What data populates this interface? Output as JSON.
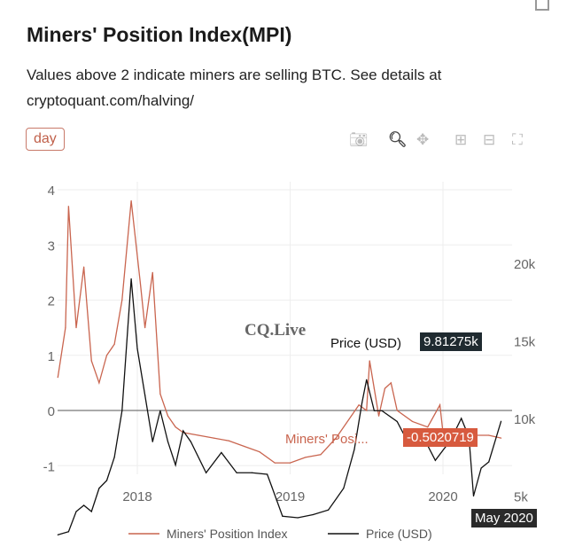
{
  "title": "Miners' Position Index(MPI)",
  "subtitle": "Values above 2 indicate miners are selling BTC. See details at cryptoquant.com/halving/",
  "range_button": "day",
  "toolbar": [
    "camera-icon",
    "zoom-icon",
    "pan-icon",
    "zoom-in-icon",
    "zoom-out-icon",
    "autoscale-icon"
  ],
  "watermark": "CQ.Live",
  "tooltips": {
    "price_label": "Price (USD)",
    "price_value": "9.81275k",
    "mpi_label": "Miners' Posi...",
    "mpi_value": "-0.5020719",
    "date": "May 2020"
  },
  "chart_data": {
    "type": "line",
    "title": "Miners' Position Index(MPI)",
    "y_left": {
      "ticks": [
        "4",
        "3",
        "2",
        "1",
        "0",
        "-1"
      ],
      "range": [
        -1,
        4
      ]
    },
    "y_right": {
      "ticks": [
        "20k",
        "15k",
        "10k",
        "5k"
      ],
      "range": [
        0,
        20000
      ]
    },
    "x_ticks": [
      "2018",
      "2019",
      "2020"
    ],
    "legend": {
      "position": "bottom",
      "entries": [
        "Miners' Position Index",
        "Price (USD)"
      ]
    },
    "colors": {
      "mpi": "#c9654f",
      "price": "#111111"
    },
    "series": [
      {
        "name": "Miners' Position Index",
        "axis": "left",
        "x": [
          2017.48,
          2017.53,
          2017.55,
          2017.6,
          2017.65,
          2017.7,
          2017.75,
          2017.8,
          2017.85,
          2017.9,
          2017.96,
          2018.02,
          2018.05,
          2018.1,
          2018.15,
          2018.2,
          2018.25,
          2018.3,
          2018.4,
          2018.5,
          2018.6,
          2018.7,
          2018.8,
          2018.9,
          2019.0,
          2019.1,
          2019.2,
          2019.3,
          2019.4,
          2019.45,
          2019.5,
          2019.52,
          2019.55,
          2019.58,
          2019.62,
          2019.66,
          2019.7,
          2019.8,
          2019.9,
          2019.98,
          2020.0,
          2020.1,
          2020.2,
          2020.3,
          2020.38
        ],
        "values": [
          0.6,
          1.5,
          3.7,
          1.5,
          2.6,
          0.9,
          0.5,
          1.0,
          1.2,
          2.0,
          3.8,
          2.3,
          1.5,
          2.5,
          0.3,
          -0.1,
          -0.3,
          -0.4,
          -0.45,
          -0.5,
          -0.55,
          -0.65,
          -0.75,
          -0.95,
          -0.95,
          -0.85,
          -0.8,
          -0.5,
          -0.1,
          0.1,
          0.0,
          0.9,
          0.4,
          -0.1,
          0.4,
          0.5,
          0.0,
          -0.2,
          -0.3,
          0.1,
          -0.4,
          -0.4,
          -0.45,
          -0.45,
          -0.5
        ]
      },
      {
        "name": "Price (USD)",
        "axis": "right",
        "x": [
          2017.48,
          2017.55,
          2017.6,
          2017.65,
          2017.7,
          2017.75,
          2017.8,
          2017.85,
          2017.9,
          2017.96,
          2018.0,
          2018.05,
          2018.1,
          2018.15,
          2018.2,
          2018.25,
          2018.3,
          2018.35,
          2018.45,
          2018.55,
          2018.65,
          2018.75,
          2018.85,
          2018.88,
          2018.95,
          2019.05,
          2019.15,
          2019.25,
          2019.35,
          2019.42,
          2019.47,
          2019.5,
          2019.55,
          2019.6,
          2019.7,
          2019.78,
          2019.85,
          2019.95,
          2020.05,
          2020.12,
          2020.17,
          2020.2,
          2020.25,
          2020.3,
          2020.38
        ],
        "values": [
          2500,
          2700,
          4000,
          4400,
          4000,
          5500,
          6000,
          7500,
          10500,
          19000,
          14500,
          11500,
          8500,
          10500,
          8500,
          7000,
          9200,
          8500,
          6500,
          7800,
          6500,
          6500,
          6400,
          5600,
          3700,
          3600,
          3800,
          4100,
          5500,
          8000,
          11000,
          12500,
          10500,
          10500,
          9800,
          8300,
          9200,
          7300,
          8600,
          10000,
          8800,
          5000,
          6800,
          7200,
          9813
        ]
      }
    ]
  }
}
